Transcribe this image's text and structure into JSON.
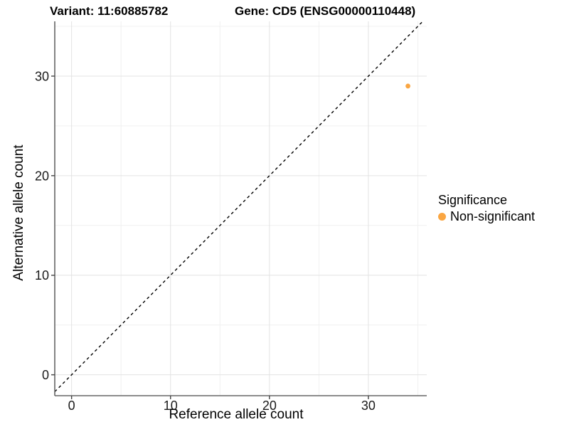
{
  "chart_data": {
    "type": "scatter",
    "title_left": "Variant: 11:60885782",
    "title_right": "Gene: CD5 (ENSG00000110448)",
    "xlabel": "Reference allele count",
    "ylabel": "Alternative allele count",
    "xlim": [
      -1.7,
      35.9
    ],
    "ylim": [
      -2.1,
      35.5
    ],
    "xticks": [
      0,
      10,
      20,
      30
    ],
    "yticks": [
      0,
      10,
      20,
      30
    ],
    "minor_xticks": [
      5,
      15,
      25,
      35
    ],
    "minor_yticks": [
      5,
      15,
      25,
      35
    ],
    "grid": "major+minor",
    "legend_position": "right",
    "identity_line": {
      "slope": 1,
      "intercept": 0,
      "style": "dashed",
      "color": "#000000"
    },
    "series": [
      {
        "name": "Non-significant",
        "color": "#FAA642",
        "points": [
          {
            "x": 34,
            "y": 29
          }
        ]
      }
    ]
  },
  "legend": {
    "title": "Significance",
    "items": [
      {
        "label": "Non-significant",
        "color": "#FAA642",
        "marker": "circle"
      }
    ]
  },
  "colors": {
    "point": "#FAA642",
    "axis_line": "#666666",
    "tick_mark": "#444444",
    "grid_major": "#e3e3e3",
    "grid_minor": "#f0f0f0",
    "tick_text": "#1a1a1a",
    "identity_line": "#000000",
    "background": "#ffffff"
  }
}
